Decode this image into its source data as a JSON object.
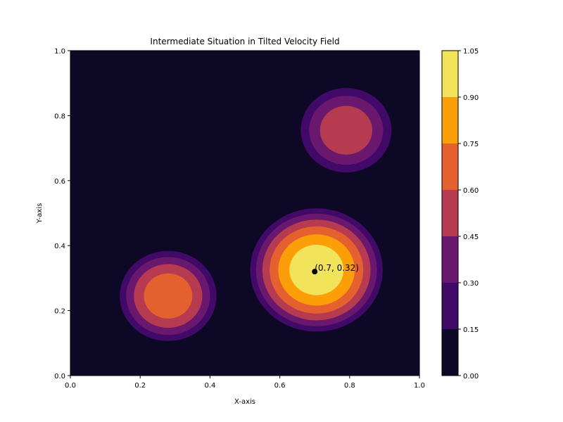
{
  "chart_data": {
    "type": "contour",
    "title": "Intermediate Situation in Tilted Velocity Field",
    "xlabel": "X-axis",
    "ylabel": "Y-axis",
    "xlim": [
      0.0,
      1.0
    ],
    "ylim": [
      0.0,
      1.0
    ],
    "x_ticks": [
      "0.0",
      "0.2",
      "0.4",
      "0.6",
      "0.8",
      "1.0"
    ],
    "y_ticks": [
      "0.0",
      "0.2",
      "0.4",
      "0.6",
      "0.8",
      "1.0"
    ],
    "grid": false,
    "colorbar": {
      "levels": [
        0.0,
        0.15,
        0.3,
        0.45,
        0.6,
        0.75,
        0.9,
        1.05
      ],
      "tick_labels": [
        "0.00",
        "0.15",
        "0.30",
        "0.45",
        "0.60",
        "0.75",
        "0.90",
        "1.05"
      ],
      "colors": [
        "#0c0826",
        "#420a68",
        "#6a176e",
        "#b73b50",
        "#e5602f",
        "#fb9e07",
        "#f2e45a"
      ]
    },
    "peaks": [
      {
        "x": 0.28,
        "y": 0.245,
        "max_level": 0.75,
        "radius": 0.155
      },
      {
        "x": 0.705,
        "y": 0.325,
        "max_level": 1.05,
        "radius": 0.205
      },
      {
        "x": 0.79,
        "y": 0.755,
        "max_level": 0.6,
        "radius": 0.15
      }
    ],
    "annotation": {
      "label": "(0.7, 0.32)",
      "x": 0.7,
      "y": 0.32
    }
  }
}
